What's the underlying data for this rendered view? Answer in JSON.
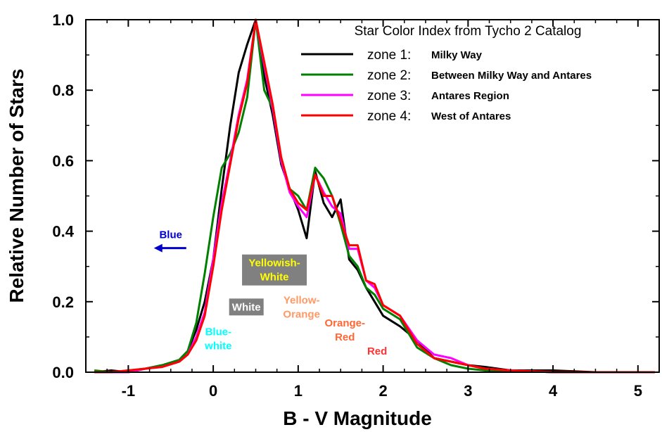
{
  "chart_data": {
    "type": "line",
    "title": "Star Color Index from Tycho 2 Catalog",
    "xlabel": "B - V Magnitude",
    "ylabel": "Relative Number of Stars",
    "xlim": [
      -1.5,
      5.25
    ],
    "ylim": [
      0.0,
      1.0
    ],
    "x_ticks": [
      -1,
      0,
      1,
      2,
      3,
      4,
      5
    ],
    "x_tick_labels": [
      "-1",
      "0",
      "1",
      "2",
      "3",
      "4",
      "5"
    ],
    "y_ticks": [
      0.0,
      0.2,
      0.4,
      0.6,
      0.8,
      1.0
    ],
    "y_tick_labels": [
      "0.0",
      "0.2",
      "0.4",
      "0.6",
      "0.8",
      "1.0"
    ],
    "grid": false,
    "legend_position": "top-right",
    "series": [
      {
        "name": "zone 1:",
        "description": "Milky Way",
        "color": "#000000",
        "x": [
          -1.4,
          -1.2,
          -1.0,
          -0.8,
          -0.6,
          -0.4,
          -0.3,
          -0.2,
          -0.1,
          0.0,
          0.1,
          0.2,
          0.3,
          0.4,
          0.5,
          0.6,
          0.7,
          0.8,
          0.9,
          1.0,
          1.1,
          1.2,
          1.3,
          1.4,
          1.5,
          1.6,
          1.7,
          1.8,
          1.9,
          2.0,
          2.2,
          2.4,
          2.6,
          2.8,
          3.0,
          3.2,
          3.5,
          4.0,
          4.5,
          5.0,
          5.2
        ],
        "y": [
          0.0,
          0.005,
          0.0,
          0.01,
          0.02,
          0.035,
          0.06,
          0.12,
          0.2,
          0.32,
          0.52,
          0.7,
          0.85,
          0.93,
          1.0,
          0.84,
          0.73,
          0.59,
          0.52,
          0.46,
          0.38,
          0.57,
          0.48,
          0.44,
          0.49,
          0.32,
          0.29,
          0.24,
          0.2,
          0.16,
          0.13,
          0.09,
          0.04,
          0.03,
          0.02,
          0.015,
          0.005,
          0.005,
          0.0,
          0.0,
          0.0
        ]
      },
      {
        "name": "zone 2:",
        "description": "Between Milky Way and Antares",
        "color": "#008000",
        "x": [
          -1.4,
          -1.2,
          -1.0,
          -0.8,
          -0.6,
          -0.4,
          -0.3,
          -0.2,
          -0.1,
          0.0,
          0.1,
          0.2,
          0.3,
          0.4,
          0.5,
          0.6,
          0.7,
          0.8,
          0.9,
          1.0,
          1.1,
          1.2,
          1.3,
          1.4,
          1.5,
          1.6,
          1.7,
          1.8,
          1.9,
          2.0,
          2.2,
          2.4,
          2.6,
          2.8,
          3.0,
          3.2,
          3.5,
          4.0,
          4.5,
          5.0,
          5.2
        ],
        "y": [
          0.005,
          0.0,
          0.005,
          0.01,
          0.02,
          0.035,
          0.06,
          0.14,
          0.28,
          0.44,
          0.58,
          0.62,
          0.68,
          0.78,
          1.0,
          0.8,
          0.75,
          0.6,
          0.52,
          0.5,
          0.46,
          0.58,
          0.55,
          0.5,
          0.42,
          0.33,
          0.3,
          0.24,
          0.22,
          0.18,
          0.15,
          0.07,
          0.04,
          0.02,
          0.01,
          0.005,
          0.005,
          0.0,
          0.0,
          0.0,
          0.0
        ]
      },
      {
        "name": "zone 3:",
        "description": "Antares Region",
        "color": "#ff00ff",
        "x": [
          -1.4,
          -1.2,
          -1.0,
          -0.8,
          -0.6,
          -0.4,
          -0.3,
          -0.2,
          -0.1,
          0.0,
          0.1,
          0.2,
          0.3,
          0.4,
          0.5,
          0.6,
          0.7,
          0.8,
          0.9,
          1.0,
          1.1,
          1.2,
          1.3,
          1.4,
          1.5,
          1.6,
          1.7,
          1.8,
          1.9,
          2.0,
          2.2,
          2.4,
          2.6,
          2.8,
          3.0,
          3.2,
          3.5,
          4.0,
          4.5,
          5.0,
          5.2
        ],
        "y": [
          0.0,
          0.0,
          0.0,
          0.01,
          0.015,
          0.03,
          0.05,
          0.1,
          0.17,
          0.32,
          0.48,
          0.6,
          0.73,
          0.83,
          1.0,
          0.87,
          0.75,
          0.6,
          0.51,
          0.47,
          0.44,
          0.56,
          0.51,
          0.47,
          0.45,
          0.35,
          0.35,
          0.26,
          0.24,
          0.19,
          0.16,
          0.09,
          0.05,
          0.04,
          0.02,
          0.01,
          0.005,
          0.0,
          0.0,
          0.0,
          0.0
        ]
      },
      {
        "name": "zone 4:",
        "description": "West of Antares",
        "color": "#ff0000",
        "x": [
          -1.4,
          -1.2,
          -1.0,
          -0.8,
          -0.6,
          -0.4,
          -0.3,
          -0.2,
          -0.1,
          0.0,
          0.1,
          0.2,
          0.3,
          0.4,
          0.5,
          0.6,
          0.7,
          0.8,
          0.9,
          1.0,
          1.1,
          1.2,
          1.3,
          1.4,
          1.5,
          1.6,
          1.7,
          1.8,
          1.9,
          2.0,
          2.2,
          2.4,
          2.6,
          2.8,
          3.0,
          3.2,
          3.5,
          4.0,
          4.5,
          5.0,
          5.2
        ],
        "y": [
          0.0,
          0.0,
          0.005,
          0.01,
          0.015,
          0.03,
          0.05,
          0.09,
          0.16,
          0.3,
          0.46,
          0.59,
          0.72,
          0.82,
          1.0,
          0.88,
          0.76,
          0.61,
          0.52,
          0.48,
          0.46,
          0.56,
          0.5,
          0.5,
          0.43,
          0.36,
          0.36,
          0.26,
          0.25,
          0.19,
          0.16,
          0.08,
          0.04,
          0.03,
          0.02,
          0.01,
          0.005,
          0.0,
          0.0,
          0.0,
          0.0
        ]
      }
    ],
    "annotations": [
      {
        "id": "blue",
        "lines": [
          "Blue"
        ],
        "color": "#0000cc",
        "x": -0.5,
        "y": 0.39,
        "boxed": false,
        "arrow": "left"
      },
      {
        "id": "yellowish-white",
        "lines": [
          "Yellowish-",
          "White"
        ],
        "color": "#ffff00",
        "box_color": "#808080",
        "x": 0.72,
        "y": 0.29,
        "boxed": true
      },
      {
        "id": "white",
        "lines": [
          "White"
        ],
        "color": "#ffffff",
        "box_color": "#808080",
        "x": 0.39,
        "y": 0.185,
        "boxed": true
      },
      {
        "id": "yellow-orange",
        "lines": [
          "Yellow-",
          "Orange"
        ],
        "color": "#ff9966",
        "x": 1.04,
        "y": 0.185,
        "boxed": false
      },
      {
        "id": "blue-white",
        "lines": [
          "Blue-",
          "white"
        ],
        "color": "#00ffff",
        "x": 0.06,
        "y": 0.095,
        "boxed": false
      },
      {
        "id": "orange-red",
        "lines": [
          "Orange-",
          "Red"
        ],
        "color": "#ff6633",
        "x": 1.55,
        "y": 0.12,
        "boxed": false
      },
      {
        "id": "red",
        "lines": [
          "Red"
        ],
        "color": "#ff3333",
        "x": 1.93,
        "y": 0.06,
        "boxed": false
      }
    ]
  }
}
